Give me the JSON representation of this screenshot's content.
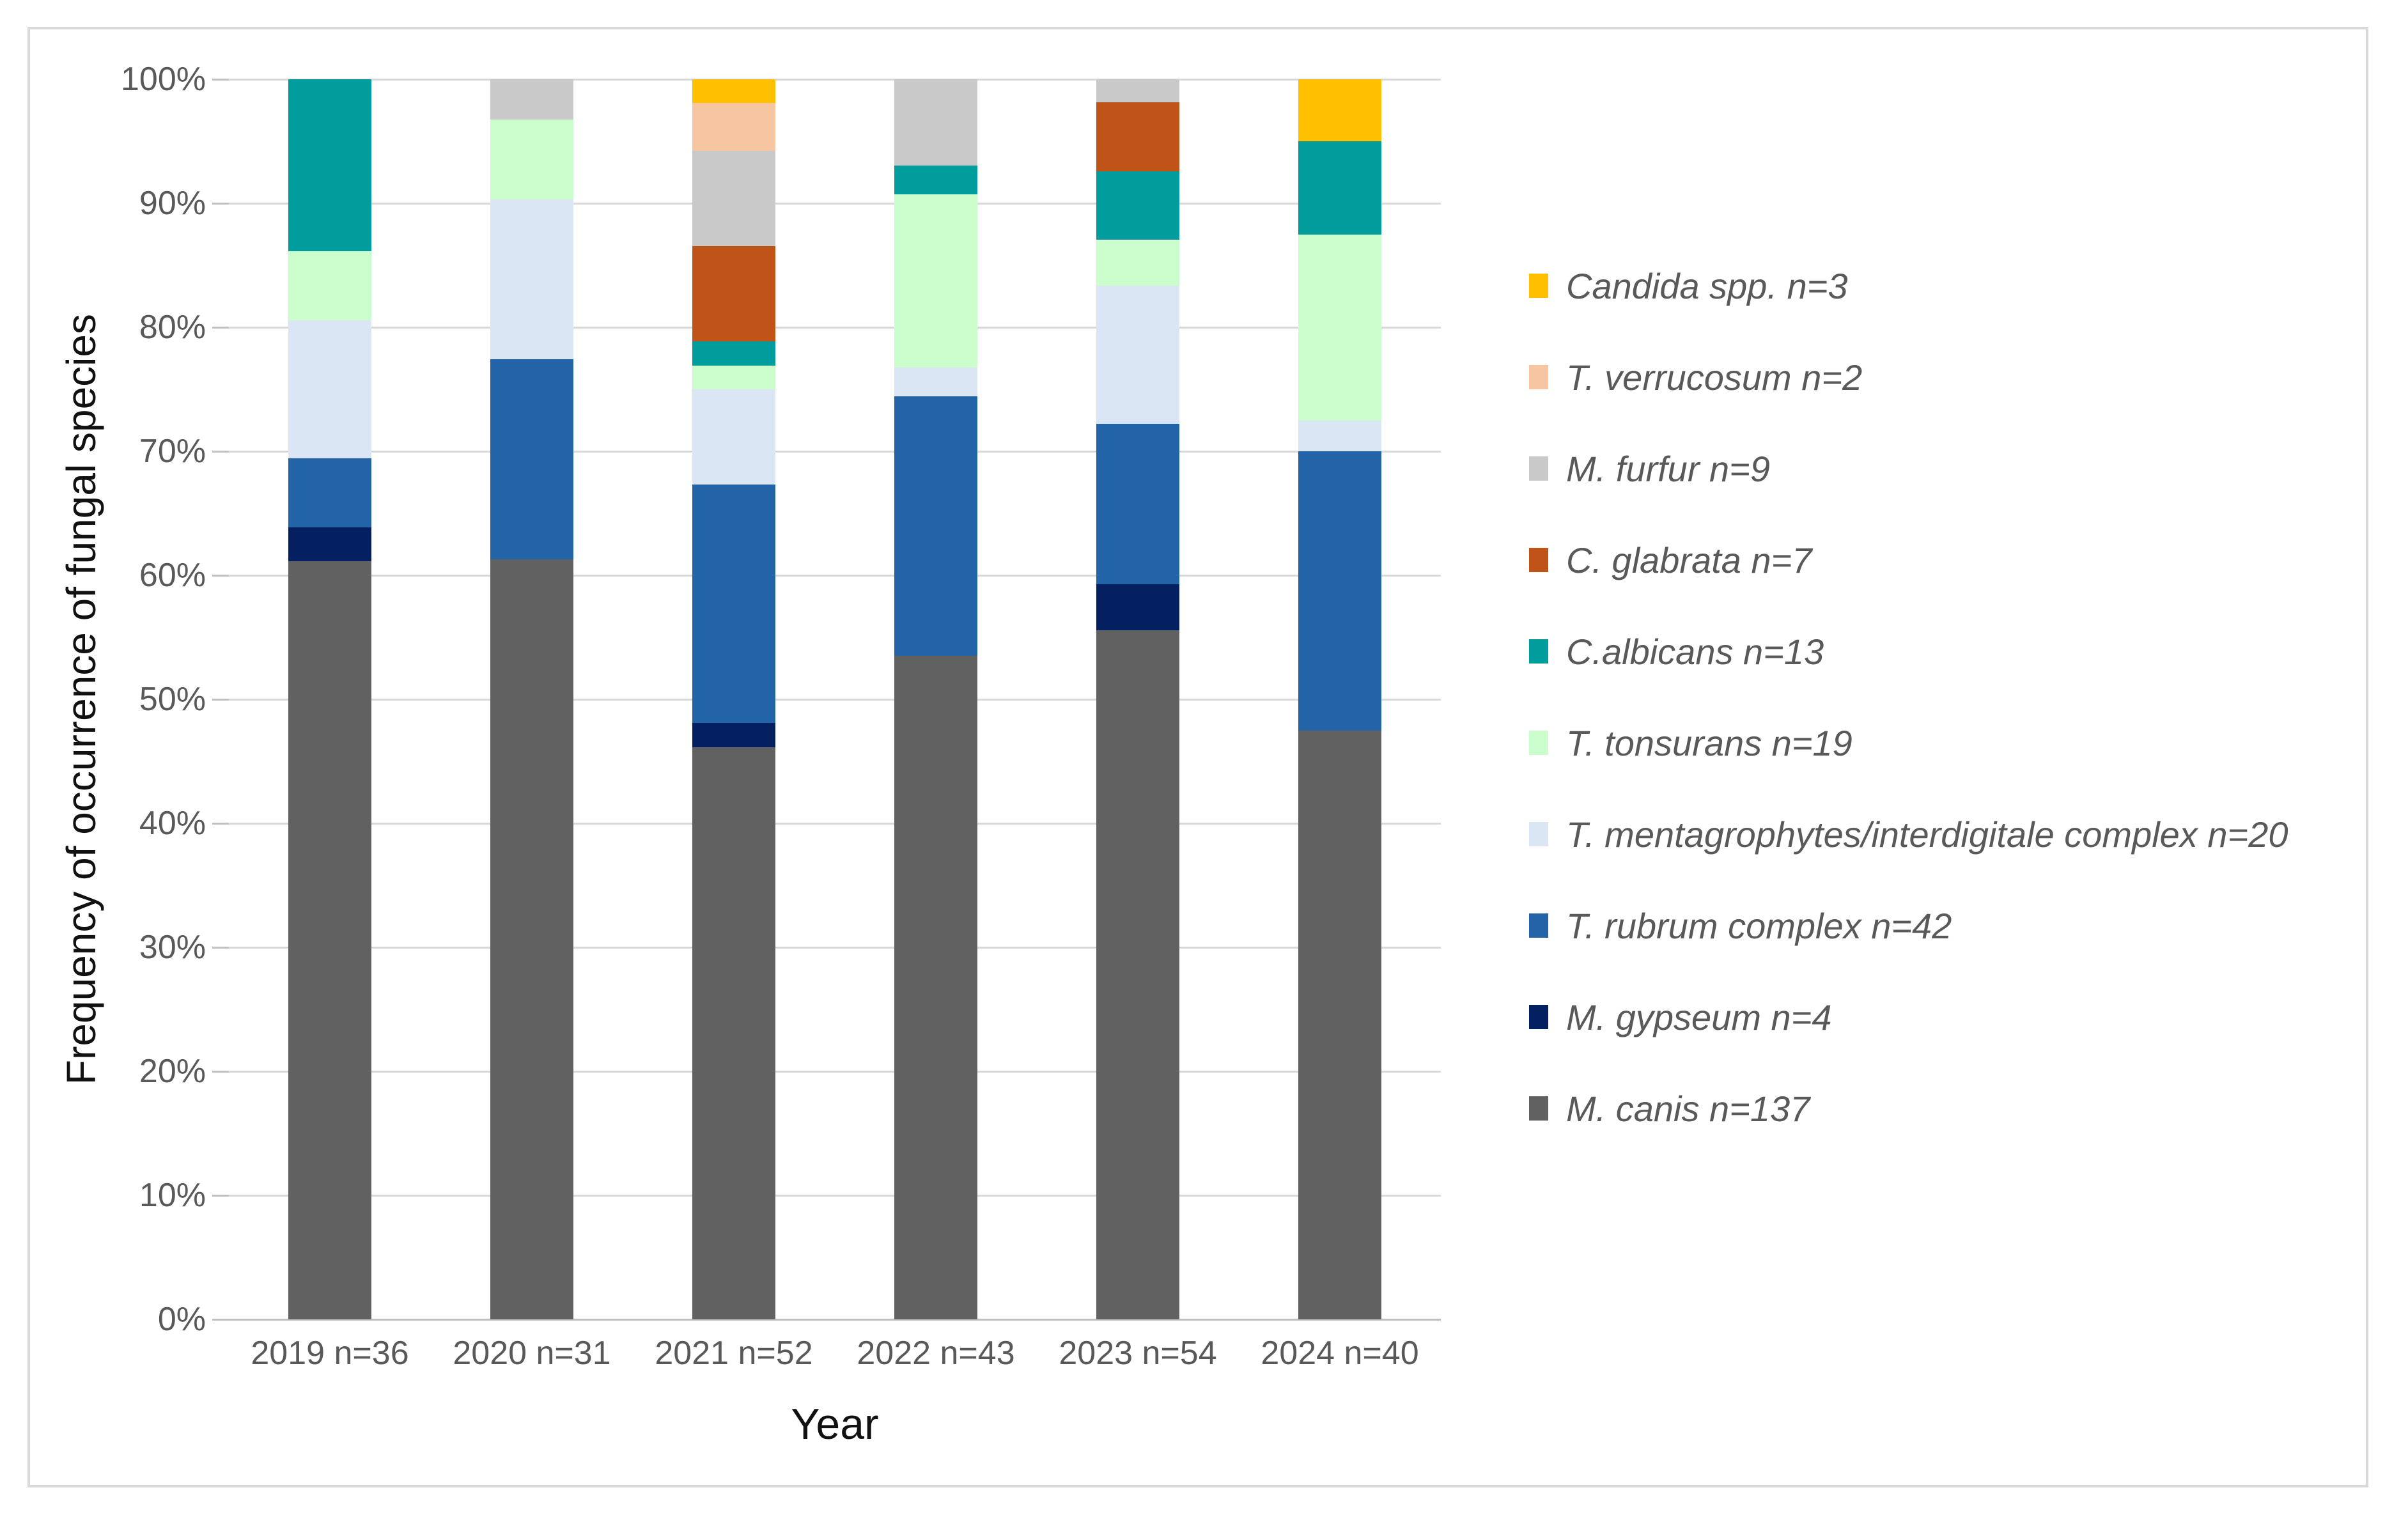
{
  "chart_data": {
    "type": "bar",
    "stacked": true,
    "stacking": "percent",
    "title": "",
    "xlabel": "Year",
    "ylabel": "Frequency of occurrence of fungal species",
    "categories": [
      "2019 n=36",
      "2020 n=31",
      "2021 n=52",
      "2022 n=43",
      "2023 n=54",
      "2024 n=40"
    ],
    "category_totals": [
      36,
      31,
      52,
      43,
      54,
      40
    ],
    "y_ticks": [
      "0%",
      "10%",
      "20%",
      "30%",
      "40%",
      "50%",
      "60%",
      "70%",
      "80%",
      "90%",
      "100%"
    ],
    "ylim": [
      0,
      100
    ],
    "grid": "horizontal",
    "legend_position": "right",
    "series_bottom_to_top": [
      {
        "name": "M. canis",
        "legend_label": "M. canis n=137",
        "total": 137,
        "color": "#616161",
        "counts": [
          22,
          19,
          24,
          23,
          30,
          19
        ],
        "percent_by_year": [
          61.1,
          61.3,
          46.2,
          53.5,
          55.6,
          47.5
        ]
      },
      {
        "name": "M. gypseum",
        "legend_label": "M. gypseum n=4",
        "total": 4,
        "color": "#052060",
        "counts": [
          1,
          0,
          1,
          0,
          2,
          0
        ],
        "percent_by_year": [
          2.8,
          0,
          1.9,
          0,
          3.7,
          0
        ]
      },
      {
        "name": "T. rubrum complex",
        "legend_label": "T. rubrum complex n=42",
        "total": 42,
        "color": "#2264A7",
        "counts": [
          2,
          5,
          10,
          9,
          7,
          9
        ],
        "percent_by_year": [
          5.6,
          16.1,
          19.2,
          20.9,
          13.0,
          22.5
        ]
      },
      {
        "name": "T. mentagrophytes/interdigitale complex",
        "legend_label": "T. mentagrophytes/interdigitale complex n=20",
        "total": 20,
        "color": "#DAE6F4",
        "counts": [
          4,
          4,
          4,
          1,
          6,
          1
        ],
        "percent_by_year": [
          11.1,
          12.9,
          7.7,
          2.3,
          11.1,
          2.5
        ]
      },
      {
        "name": "T. tonsurans",
        "legend_label": "T. tonsurans n=19",
        "total": 19,
        "color": "#CBFECC",
        "counts": [
          2,
          2,
          1,
          6,
          2,
          6
        ],
        "percent_by_year": [
          5.6,
          6.5,
          1.9,
          14.0,
          3.7,
          15.0
        ]
      },
      {
        "name": "C.albicans",
        "legend_label": "C.albicans n=13",
        "total": 13,
        "color": "#019C9C",
        "counts": [
          5,
          0,
          1,
          1,
          3,
          3
        ],
        "percent_by_year": [
          13.9,
          0,
          1.9,
          2.3,
          5.6,
          7.5
        ]
      },
      {
        "name": "C. glabrata",
        "legend_label": "C. glabrata n=7",
        "total": 7,
        "color": "#C05317",
        "counts": [
          0,
          0,
          4,
          0,
          3,
          0
        ],
        "percent_by_year": [
          0,
          0,
          7.7,
          0,
          5.6,
          0
        ]
      },
      {
        "name": "M. furfur",
        "legend_label": "M. furfur n=9",
        "total": 9,
        "color": "#C9C9C9",
        "counts": [
          0,
          1,
          4,
          3,
          1,
          0
        ],
        "percent_by_year": [
          0,
          3.2,
          7.7,
          7.0,
          1.9,
          0
        ]
      },
      {
        "name": "T. verrucosum",
        "legend_label": "T. verrucosum n=2",
        "total": 2,
        "color": "#F6C6A3",
        "counts": [
          0,
          0,
          2,
          0,
          0,
          0
        ],
        "percent_by_year": [
          0,
          0,
          3.8,
          0,
          0,
          0
        ]
      },
      {
        "name": "Candida spp.",
        "legend_label": "Candida spp. n=3",
        "total": 3,
        "color": "#FFC001",
        "counts": [
          0,
          0,
          1,
          0,
          0,
          2
        ],
        "percent_by_year": [
          0,
          0,
          1.9,
          0,
          0,
          5.0
        ]
      }
    ],
    "legend_order_top_to_bottom": [
      "Candida spp.",
      "T. verrucosum",
      "M. furfur",
      "C. glabrata",
      "C.albicans",
      "T. tonsurans",
      "T. mentagrophytes/interdigitale complex",
      "T. rubrum complex",
      "M. gypseum",
      "M. canis"
    ]
  }
}
